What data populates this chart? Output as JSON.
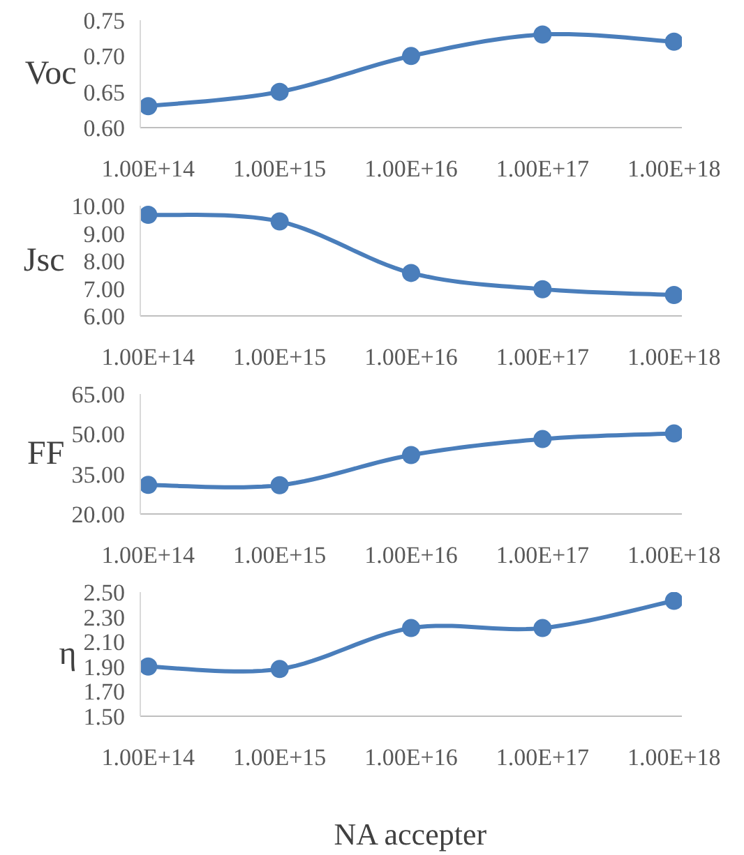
{
  "chart_data": [
    {
      "type": "line",
      "ylabel": "Voc",
      "categories": [
        "1.00E+14",
        "1.00E+15",
        "1.00E+16",
        "1.00E+17",
        "1.00E+18"
      ],
      "values": [
        0.63,
        0.65,
        0.7,
        0.73,
        0.72
      ],
      "color": "#4a7ebb",
      "ylim": [
        0.6,
        0.75
      ],
      "yticks": [
        {
          "value": 0.6,
          "label": "0.60"
        },
        {
          "value": 0.65,
          "label": "0.65"
        },
        {
          "value": 0.7,
          "label": "0.70"
        },
        {
          "value": 0.75,
          "label": "0.75"
        }
      ],
      "marker": "circle",
      "line_style": "solid"
    },
    {
      "type": "line",
      "ylabel": "Jsc",
      "categories": [
        "1.00E+14",
        "1.00E+15",
        "1.00E+16",
        "1.00E+17",
        "1.00E+18"
      ],
      "values": [
        9.67,
        9.43,
        7.56,
        6.97,
        6.76
      ],
      "color": "#4a7ebb",
      "ylim": [
        6,
        10
      ],
      "yticks": [
        {
          "value": 6,
          "label": "6.00"
        },
        {
          "value": 7,
          "label": "7.00"
        },
        {
          "value": 8,
          "label": "8.00"
        },
        {
          "value": 9,
          "label": "9.00"
        },
        {
          "value": 10,
          "label": "10.00"
        }
      ],
      "marker": "circle",
      "line_style": "solid"
    },
    {
      "type": "line",
      "ylabel": "FF",
      "categories": [
        "1.00E+14",
        "1.00E+15",
        "1.00E+16",
        "1.00E+17",
        "1.00E+18"
      ],
      "values": [
        30.9,
        30.8,
        42.1,
        48.1,
        50.2
      ],
      "color": "#4a7ebb",
      "ylim": [
        20,
        65
      ],
      "yticks": [
        {
          "value": 20,
          "label": "20.00"
        },
        {
          "value": 35,
          "label": "35.00"
        },
        {
          "value": 50,
          "label": "50.00"
        },
        {
          "value": 65,
          "label": "65.00"
        }
      ],
      "marker": "circle",
      "line_style": "solid"
    },
    {
      "type": "line",
      "ylabel": "η",
      "xlabel": "NA accepter",
      "categories": [
        "1.00E+14",
        "1.00E+15",
        "1.00E+16",
        "1.00E+17",
        "1.00E+18"
      ],
      "values": [
        1.9,
        1.88,
        2.21,
        2.21,
        2.43
      ],
      "color": "#4a7ebb",
      "ylim": [
        1.5,
        2.5
      ],
      "yticks": [
        {
          "value": 1.5,
          "label": "1.50"
        },
        {
          "value": 1.7,
          "label": "1.70"
        },
        {
          "value": 1.9,
          "label": "1.90"
        },
        {
          "value": 2.1,
          "label": "2.10"
        },
        {
          "value": 2.3,
          "label": "2.30"
        },
        {
          "value": 2.5,
          "label": "2.50"
        }
      ],
      "marker": "circle",
      "line_style": "solid"
    }
  ]
}
